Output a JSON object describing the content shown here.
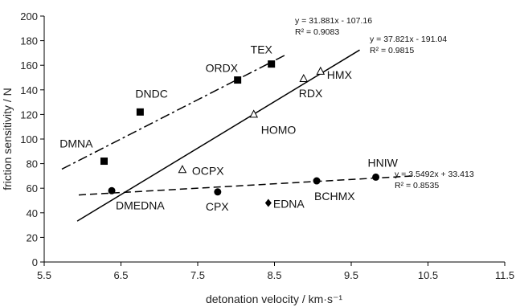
{
  "chart_data": {
    "type": "scatter",
    "xlabel": "detonation velocity / km·s⁻¹",
    "ylabel": "friction sensitivity / N",
    "xlim": [
      5.5,
      11.5
    ],
    "ylim": [
      0,
      200
    ],
    "xticks": [
      "5.5",
      "6.5",
      "7.5",
      "8.5",
      "9.5",
      "10.5",
      "11.5"
    ],
    "yticks": [
      "0",
      "20",
      "40",
      "60",
      "80",
      "100",
      "120",
      "140",
      "160",
      "180",
      "200"
    ],
    "grid": false,
    "points": [
      {
        "label": "DMNA",
        "x": 6.28,
        "y": 82,
        "marker": "square"
      },
      {
        "label": "DNDC",
        "x": 6.75,
        "y": 122,
        "marker": "square"
      },
      {
        "label": "ORDX",
        "x": 8.02,
        "y": 148,
        "marker": "square"
      },
      {
        "label": "TEX",
        "x": 8.46,
        "y": 161,
        "marker": "square"
      },
      {
        "label": "HMX",
        "x": 9.1,
        "y": 155,
        "marker": "triangle"
      },
      {
        "label": "RDX",
        "x": 8.88,
        "y": 149,
        "marker": "triangle"
      },
      {
        "label": "HOMO",
        "x": 8.23,
        "y": 120,
        "marker": "triangle"
      },
      {
        "label": "OCPX",
        "x": 7.3,
        "y": 75,
        "marker": "triangle"
      },
      {
        "label": "DMEDNA",
        "x": 6.38,
        "y": 58,
        "marker": "circle"
      },
      {
        "label": "CPX",
        "x": 7.76,
        "y": 57,
        "marker": "circle"
      },
      {
        "label": "BCHMX",
        "x": 9.05,
        "y": 66,
        "marker": "circle"
      },
      {
        "label": "HNIW",
        "x": 9.82,
        "y": 69,
        "marker": "circle"
      },
      {
        "label": "EDNA",
        "x": 8.42,
        "y": 48,
        "marker": "diamond"
      }
    ],
    "trendlines": [
      {
        "style": "dash-dot",
        "x": [
          5.73,
          8.64
        ],
        "equation": "y = 31.881x - 107.16",
        "r2": "R² = 0.9083"
      },
      {
        "style": "solid",
        "x": [
          5.93,
          9.61
        ],
        "equation": "y = 37.821x - 191.04",
        "r2": "R² = 0.9815"
      },
      {
        "style": "dashed",
        "x": [
          5.95,
          10.33
        ],
        "equation": "y = 3.5492x + 33.413",
        "r2": "R² = 0.8535"
      }
    ]
  }
}
